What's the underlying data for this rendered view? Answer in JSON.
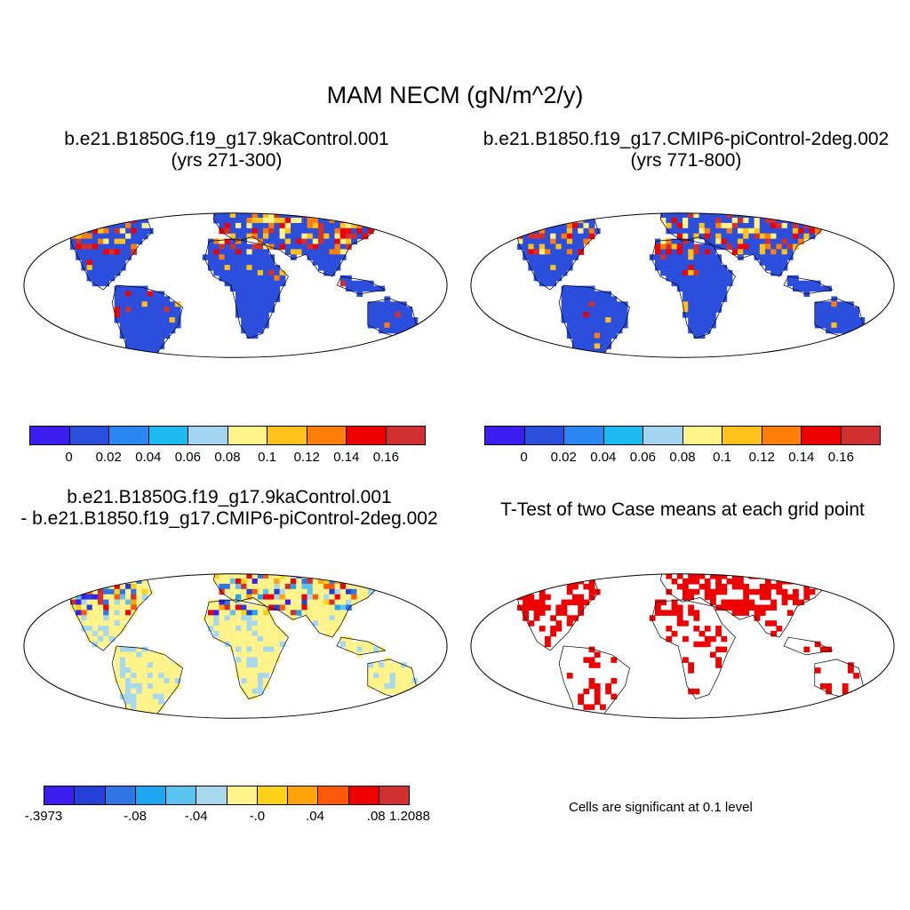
{
  "figure": {
    "title": "MAM NECM (gN/m^2/y)",
    "panels": [
      {
        "id": "case1",
        "title_line1": "b.e21.B1850G.f19_g17.9kaControl.001",
        "title_line2": "(yrs 271-300)"
      },
      {
        "id": "case2",
        "title_line1": "b.e21.B1850.f19_g17.CMIP6-piControl-2deg.002",
        "title_line2": "(yrs 771-800)"
      },
      {
        "id": "diff",
        "title_line1": "b.e21.B1850G.f19_g17.9kaControl.001",
        "title_line2": "- b.e21.B1850.f19_g17.CMIP6-piControl-2deg.002"
      },
      {
        "id": "ttest",
        "title_line1": "T-Test of two Case means at each grid point"
      }
    ],
    "ttest_note": "Cells are significant at 0.1 level"
  },
  "colorbars": {
    "abs": {
      "colors": [
        "#3c1ef0",
        "#2c4edd",
        "#2a86f0",
        "#1cbaf0",
        "#a3d5f0",
        "#fff38a",
        "#ffc21a",
        "#ff7f0a",
        "#ee0000",
        "#d03030"
      ],
      "labels": [
        "0",
        "0.02",
        "0.04",
        "0.06",
        "0.08",
        "0.1",
        "0.12",
        "0.14",
        "0.16"
      ]
    },
    "diff": {
      "colors": [
        "#3c1ef0",
        "#2440d8",
        "#2f75e8",
        "#1ea6f0",
        "#5cc2f0",
        "#a8d8ee",
        "#fff38a",
        "#ffd21a",
        "#ffa40a",
        "#ff5a0a",
        "#ee0000",
        "#d03030"
      ],
      "labels": [
        "-.3973",
        "-.08",
        "-.04",
        "-.0",
        ".04",
        ".08",
        "1.2088"
      ]
    }
  },
  "map_palette": {
    "land_base_abs": "#2c4edd",
    "land_base_diff": "#fff38a",
    "significant": "#ee0000",
    "outline": "#000000",
    "ocean": "#ffffff"
  }
}
